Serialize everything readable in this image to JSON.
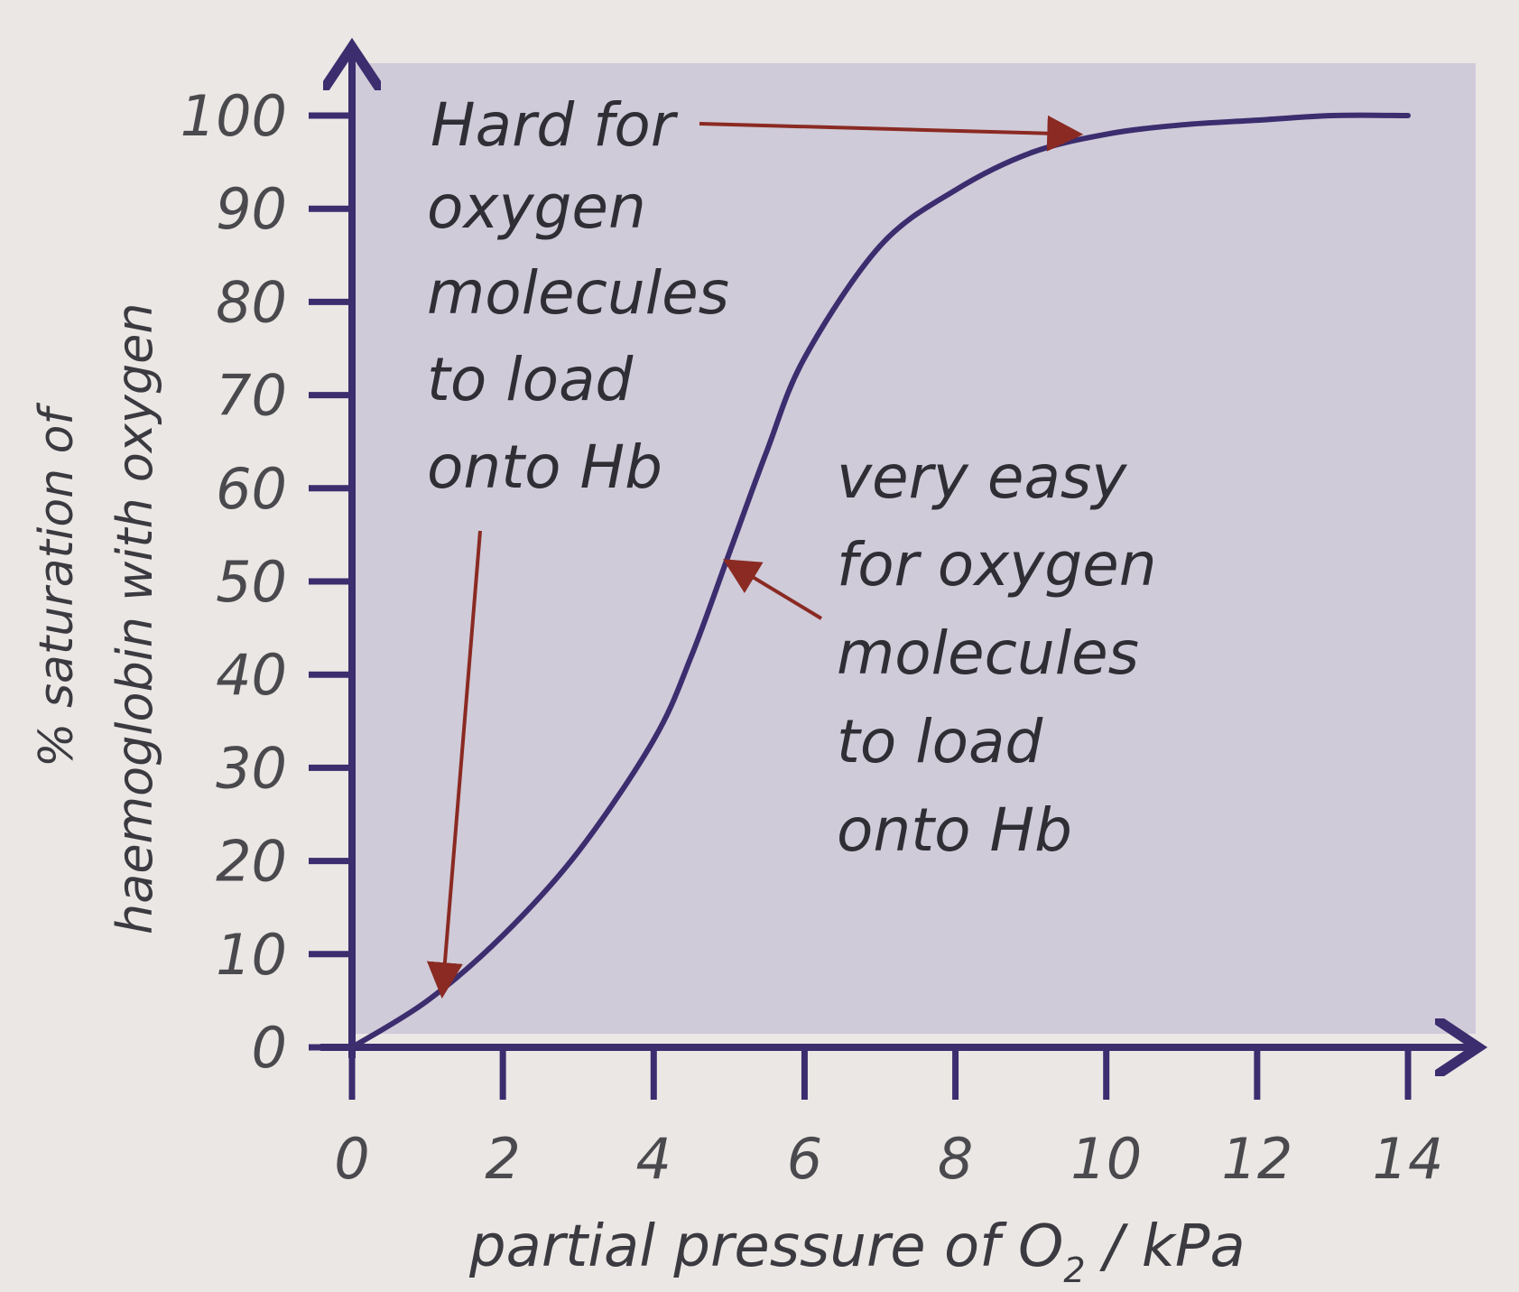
{
  "chart_data": {
    "type": "line",
    "title": "",
    "xlabel": "partial pressure of O",
    "xlabel_sub": "2",
    "xlabel_unit": " / kPa",
    "ylabel_line1": "% saturation of",
    "ylabel_line2": "haemoglobin with oxygen",
    "xlim": [
      0,
      14
    ],
    "ylim": [
      0,
      100
    ],
    "x_ticks": [
      "0",
      "2",
      "4",
      "6",
      "8",
      "10",
      "12",
      "14"
    ],
    "y_ticks": [
      "0",
      "10",
      "20",
      "30",
      "40",
      "50",
      "60",
      "70",
      "80",
      "90",
      "100"
    ],
    "grid": false,
    "series": [
      {
        "color": "#3b2d6e",
        "x": [
          0,
          1,
          2,
          3,
          4,
          4.5,
          5,
          5.5,
          6,
          7,
          8,
          9,
          10,
          11,
          12,
          13,
          14
        ],
        "y": [
          0,
          5,
          12,
          21,
          33,
          42,
          53,
          64,
          74,
          86,
          92,
          96,
          98,
          99,
          99.5,
          100,
          100
        ]
      }
    ],
    "annotations": [
      {
        "lines": [
          "Hard for",
          "oxygen",
          "molecules",
          "to load",
          "onto Hb"
        ],
        "arrows": [
          {
            "to_x": 9.6,
            "to_y": 98
          },
          {
            "to_x": 1.2,
            "to_y": 6
          }
        ]
      },
      {
        "lines": [
          "very easy",
          "for oxygen",
          "molecules",
          "to load",
          "onto Hb"
        ],
        "arrows": [
          {
            "to_x": 5.0,
            "to_y": 52
          }
        ]
      }
    ],
    "colors": {
      "plot_background": "#cfcbd9",
      "axis": "#3b2d6e",
      "curve": "#3b2d6e",
      "arrow": "#8a2a22"
    }
  }
}
